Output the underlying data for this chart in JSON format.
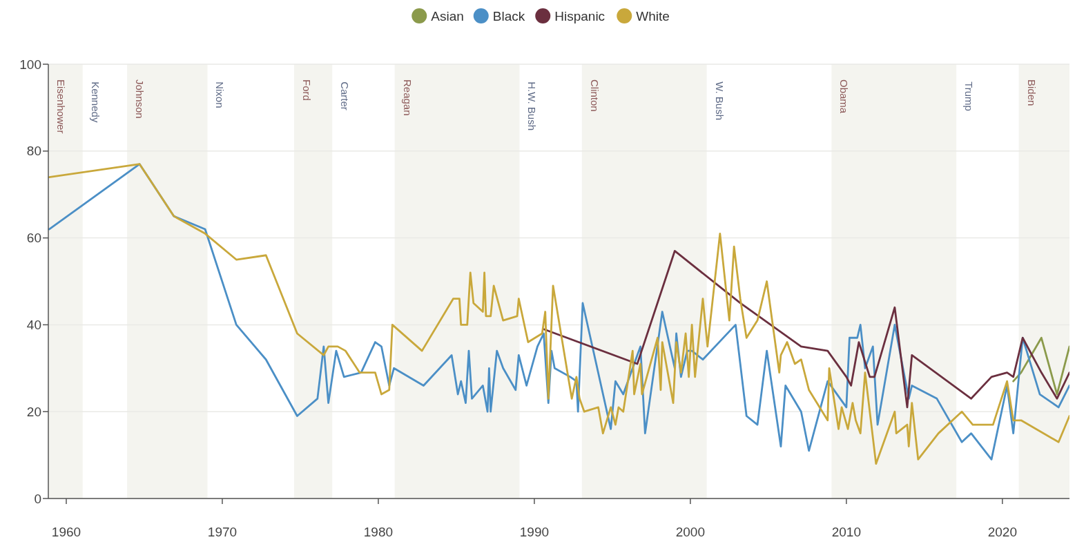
{
  "chart_data": {
    "type": "line",
    "xlim": [
      1958.85,
      2024.3
    ],
    "xticks": [
      1960,
      1970,
      1980,
      1990,
      2000,
      2010,
      2020
    ],
    "ylim": [
      0,
      100
    ],
    "yticks": [
      0,
      20,
      40,
      60,
      80,
      100
    ],
    "grid": "y",
    "legend": "top",
    "marker": "none",
    "line_style": "solid",
    "bands": [
      {
        "axis": "x",
        "from": 1958.85,
        "to": 1961.05,
        "label": "Eisenhower",
        "color": "#f4f4ef"
      },
      {
        "axis": "x",
        "from": 1963.9,
        "to": 1969.05,
        "label": "Johnson",
        "color": "#f4f4ef"
      },
      {
        "axis": "x",
        "from": 1974.6,
        "to": 1977.05,
        "label": "Ford",
        "color": "#f4f4ef"
      },
      {
        "axis": "x",
        "from": 1981.05,
        "to": 1989.05,
        "label": "Reagan",
        "color": "#f4f4ef"
      },
      {
        "axis": "x",
        "from": 1993.05,
        "to": 2001.05,
        "label": "Clinton",
        "color": "#f4f4ef"
      },
      {
        "axis": "x",
        "from": 2009.05,
        "to": 2017.05,
        "label": "Obama",
        "color": "#f4f4ef"
      },
      {
        "axis": "x",
        "from": 2021.05,
        "to": 2024.3,
        "label": "Biden",
        "color": "#f4f4ef"
      }
    ],
    "annotations": [
      {
        "text": "Kennedy",
        "x": 1961.05,
        "y": 96
      },
      {
        "text": "Nixon",
        "x": 1969.05,
        "y": 96
      },
      {
        "text": "Carter",
        "x": 1977.05,
        "y": 96
      },
      {
        "text": "H.W. Bush",
        "x": 1989.05,
        "y": 96
      },
      {
        "text": "W. Bush",
        "x": 2001.05,
        "y": 96
      },
      {
        "text": "Trump",
        "x": 2017.05,
        "y": 96
      }
    ],
    "series": [
      {
        "name": "Asian",
        "color": "#8b9a4b",
        "x": [
          2020.7,
          2021.2,
          2022.5,
          2023.5,
          2024.3
        ],
        "values": [
          27,
          29,
          37,
          24,
          35
        ]
      },
      {
        "name": "Black",
        "color": "#4b8fc6",
        "x": [
          1958.9,
          1964.7,
          1966.9,
          1968.9,
          1970.9,
          1972.8,
          1974.8,
          1976.1,
          1976.5,
          1976.8,
          1977.3,
          1977.8,
          1978.9,
          1979.8,
          1980.2,
          1980.7,
          1981,
          1982.9,
          1984.7,
          1985.1,
          1985.3,
          1985.6,
          1985.8,
          1986,
          1986.7,
          1987,
          1987.1,
          1987.2,
          1987.6,
          1988,
          1988.8,
          1989,
          1989.5,
          1990.2,
          1990.6,
          1990.9,
          1991.1,
          1991.3,
          1992.3,
          1992.7,
          1992.8,
          1993.1,
          1994.9,
          1995.2,
          1995.7,
          1996.8,
          1997.1,
          1998.2,
          1999,
          1999.1,
          1999.4,
          1999.8,
          2000.1,
          2000.8,
          2002.9,
          2003.6,
          2004.3,
          2004.9,
          2005.8,
          2006.1,
          2007.1,
          2007.6,
          2008.8,
          2010,
          2010.2,
          2010.7,
          2010.9,
          2011.2,
          2011.7,
          2012,
          2013.1,
          2014,
          2014.2,
          2015.8,
          2017.4,
          2018,
          2019.3,
          2020.3,
          2020.7,
          2021.3,
          2022.4,
          2023.6,
          2024.3
        ],
        "values": [
          62,
          77,
          65,
          62,
          40,
          32,
          19,
          23,
          35,
          22,
          34,
          28,
          29,
          36,
          35,
          26,
          30,
          26,
          33,
          24,
          27,
          22,
          34,
          23,
          26,
          20,
          30,
          20,
          34,
          30,
          25,
          33,
          26,
          35,
          38,
          22,
          34,
          30,
          28,
          27,
          20,
          45,
          16,
          27,
          24,
          35,
          15,
          43,
          30,
          38,
          28,
          34,
          34,
          32,
          40,
          19,
          17,
          34,
          12,
          26,
          20,
          11,
          27,
          21,
          37,
          37,
          40,
          30,
          35,
          17,
          40,
          23,
          26,
          23,
          13,
          15,
          9,
          26,
          15,
          37,
          24,
          21,
          26
        ]
      },
      {
        "name": "Hispanic",
        "color": "#6b2f3f",
        "x": [
          1990.6,
          1996.6,
          1999,
          2003.2,
          2007.1,
          2008.8,
          2010,
          2010.3,
          2010.8,
          2011.5,
          2011.8,
          2013.1,
          2013.9,
          2014.2,
          2018,
          2019.3,
          2020.3,
          2020.7,
          2021.3,
          2022.5,
          2023.5,
          2024.3
        ],
        "values": [
          39,
          31,
          57,
          45,
          35,
          34,
          28,
          26,
          36,
          28,
          28,
          44,
          21,
          33,
          23,
          28,
          29,
          28,
          37,
          29,
          23,
          29
        ]
      },
      {
        "name": "White",
        "color": "#c9a83b",
        "x": [
          1958.9,
          1964.7,
          1966.9,
          1968.9,
          1970.9,
          1972.8,
          1974.8,
          1976.5,
          1976.8,
          1977.4,
          1977.9,
          1978.8,
          1979.8,
          1980.2,
          1980.7,
          1980.9,
          1982.8,
          1984.8,
          1985.2,
          1985.3,
          1985.7,
          1985.9,
          1986.1,
          1986.7,
          1986.8,
          1986.9,
          1987.2,
          1987.4,
          1988,
          1988.9,
          1989,
          1989.6,
          1990.5,
          1990.7,
          1990.9,
          1991.2,
          1992.4,
          1992.7,
          1992.9,
          1993.2,
          1994.1,
          1994.4,
          1994.9,
          1995.2,
          1995.4,
          1995.7,
          1996.3,
          1996.4,
          1996.8,
          1996.9,
          1997.9,
          1998.1,
          1998.2,
          1998.9,
          1999.1,
          1999.4,
          1999.7,
          1999.9,
          2000.1,
          2000.3,
          2000.8,
          2001.1,
          2001.9,
          2002.5,
          2002.8,
          2003.2,
          2003.6,
          2004.3,
          2004.9,
          2005.7,
          2005.8,
          2006.2,
          2006.7,
          2007.1,
          2007.6,
          2008.8,
          2008.9,
          2009.2,
          2009.5,
          2009.7,
          2010.1,
          2010.4,
          2010.6,
          2010.9,
          2011.2,
          2011.9,
          2013.1,
          2013.2,
          2013.9,
          2014,
          2014.2,
          2014.6,
          2015.9,
          2017.4,
          2018.1,
          2019.4,
          2020.3,
          2020.7,
          2021.2,
          2023.6,
          2024.3
        ],
        "values": [
          74,
          77,
          65,
          61,
          55,
          56,
          38,
          33,
          35,
          35,
          34,
          29,
          29,
          24,
          25,
          40,
          34,
          46,
          46,
          40,
          40,
          52,
          45,
          43,
          52,
          42,
          42,
          49,
          41,
          42,
          46,
          36,
          38,
          43,
          23,
          49,
          23,
          28,
          23,
          20,
          21,
          15,
          21,
          17,
          21,
          20,
          34,
          24,
          31,
          24,
          37,
          25,
          36,
          22,
          36,
          29,
          38,
          28,
          40,
          28,
          46,
          35,
          61,
          41,
          58,
          46,
          37,
          41,
          50,
          29,
          33,
          36,
          31,
          32,
          25,
          18,
          30,
          23,
          16,
          21,
          16,
          22,
          18,
          15,
          29,
          8,
          20,
          15,
          17,
          12,
          22,
          9,
          15,
          20,
          17,
          17,
          27,
          18,
          18,
          13,
          19
        ]
      }
    ]
  }
}
